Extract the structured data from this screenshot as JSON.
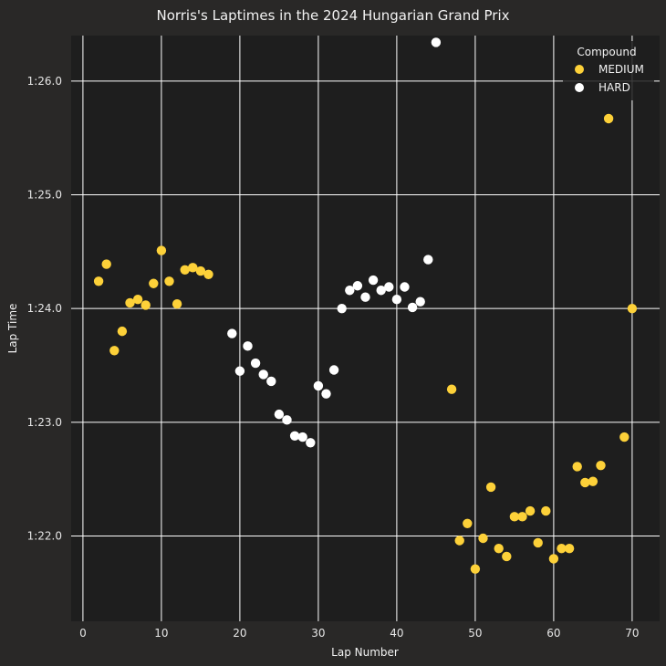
{
  "chart_data": {
    "type": "scatter",
    "title": "Norris's Laptimes in the 2024 Hungarian Grand Prix",
    "xlabel": "Lap Number",
    "ylabel": "Lap Time",
    "xlim": [
      -1.5,
      73.5
    ],
    "ylim": [
      81.25,
      86.4
    ],
    "x_ticks": [
      0,
      10,
      20,
      30,
      40,
      50,
      60,
      70
    ],
    "y_ticks": [
      {
        "value": 82,
        "label": "1:22.0"
      },
      {
        "value": 83,
        "label": "1:23.0"
      },
      {
        "value": 84,
        "label": "1:24.0"
      },
      {
        "value": 85,
        "label": "1:25.0"
      },
      {
        "value": 86,
        "label": "1:26.0"
      }
    ],
    "grid": true,
    "legend": {
      "title": "Compound",
      "position": "top-right"
    },
    "colors": {
      "background": "#292827",
      "plot_bg": "#1e1e1e",
      "grid": "#ffffff",
      "medium": "#fdd139",
      "hard": "#ffffff"
    },
    "series": [
      {
        "name": "MEDIUM",
        "points": [
          [
            2,
            84.24
          ],
          [
            3,
            84.39
          ],
          [
            4,
            83.63
          ],
          [
            5,
            83.8
          ],
          [
            6,
            84.05
          ],
          [
            7,
            84.08
          ],
          [
            8,
            84.03
          ],
          [
            9,
            84.22
          ],
          [
            10,
            84.51
          ],
          [
            11,
            84.24
          ],
          [
            12,
            84.04
          ],
          [
            13,
            84.34
          ],
          [
            14,
            84.36
          ],
          [
            15,
            84.33
          ],
          [
            16,
            84.3
          ],
          [
            47,
            83.29
          ],
          [
            48,
            81.96
          ],
          [
            49,
            82.11
          ],
          [
            50,
            81.71
          ],
          [
            51,
            81.98
          ],
          [
            52,
            82.43
          ],
          [
            53,
            81.89
          ],
          [
            54,
            81.82
          ],
          [
            55,
            82.17
          ],
          [
            56,
            82.17
          ],
          [
            57,
            82.22
          ],
          [
            58,
            81.94
          ],
          [
            59,
            82.22
          ],
          [
            60,
            81.8
          ],
          [
            61,
            81.89
          ],
          [
            62,
            81.89
          ],
          [
            63,
            82.61
          ],
          [
            64,
            82.47
          ],
          [
            65,
            82.48
          ],
          [
            66,
            82.62
          ],
          [
            67,
            85.67
          ],
          [
            69,
            82.87
          ],
          [
            70,
            84.0
          ]
        ]
      },
      {
        "name": "HARD",
        "points": [
          [
            19,
            83.78
          ],
          [
            20,
            83.45
          ],
          [
            21,
            83.67
          ],
          [
            22,
            83.52
          ],
          [
            23,
            83.42
          ],
          [
            24,
            83.36
          ],
          [
            25,
            83.07
          ],
          [
            26,
            83.02
          ],
          [
            27,
            82.88
          ],
          [
            28,
            82.87
          ],
          [
            29,
            82.82
          ],
          [
            30,
            83.32
          ],
          [
            31,
            83.25
          ],
          [
            32,
            83.46
          ],
          [
            33,
            84.0
          ],
          [
            34,
            84.16
          ],
          [
            35,
            84.2
          ],
          [
            36,
            84.1
          ],
          [
            37,
            84.25
          ],
          [
            38,
            84.16
          ],
          [
            39,
            84.19
          ],
          [
            40,
            84.08
          ],
          [
            41,
            84.19
          ],
          [
            42,
            84.01
          ],
          [
            43,
            84.06
          ],
          [
            44,
            84.43
          ],
          [
            45,
            86.34
          ]
        ]
      }
    ]
  }
}
